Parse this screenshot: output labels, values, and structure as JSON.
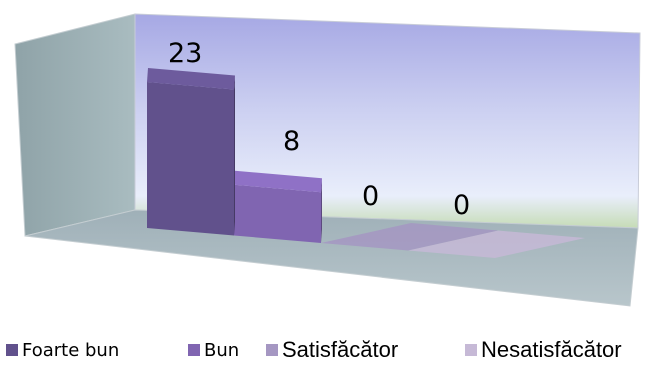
{
  "chart_data": {
    "type": "bar",
    "categories": [
      "Foarte bun",
      "Bun",
      "Satisfăcător",
      "Nesatisfăcător"
    ],
    "values": [
      23,
      8,
      0,
      0
    ],
    "data_labels": [
      "23",
      "8",
      "0",
      "0"
    ],
    "ylim": [
      0,
      25
    ],
    "grid": false,
    "legend_position": "bottom",
    "style": "3d",
    "colors": [
      "#61518c",
      "#8065b1",
      "#a597c2",
      "#c6b9d6"
    ]
  },
  "legend": {
    "items": [
      "Foarte bun",
      "Bun",
      "Satisfăcător",
      "Nesatisfăcător"
    ]
  }
}
